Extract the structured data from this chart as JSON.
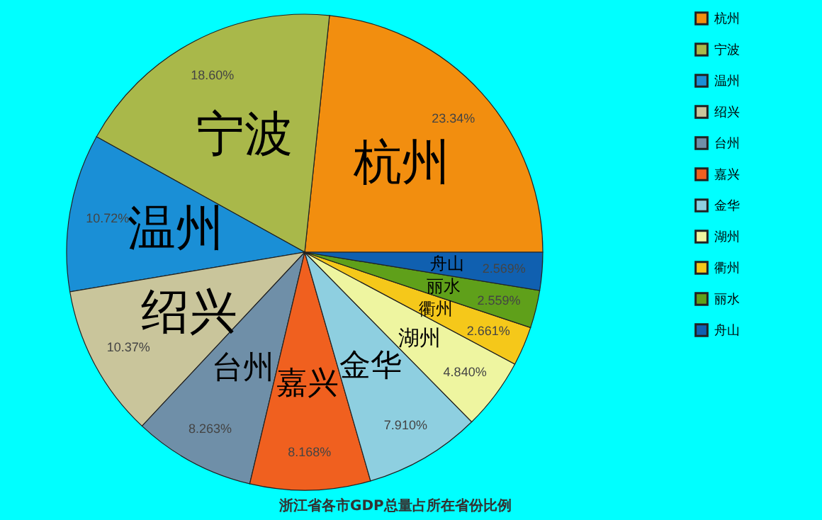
{
  "chart_data": {
    "type": "pie",
    "title": "浙江省各市GDP总量占所在省份比例",
    "categories": [
      "杭州",
      "宁波",
      "温州",
      "绍兴",
      "台州",
      "嘉兴",
      "金华",
      "湖州",
      "衢州",
      "丽水",
      "舟山"
    ],
    "values": [
      23.34,
      18.6,
      10.72,
      10.37,
      8.263,
      8.168,
      7.91,
      4.84,
      2.661,
      2.559,
      2.569
    ],
    "value_labels": [
      "23.34%",
      "18.60%",
      "10.72%",
      "10.37%",
      "8.263%",
      "8.168%",
      "7.910%",
      "4.840%",
      "2.661%",
      "2.559%",
      "2.569%"
    ],
    "colors": [
      "#f28e0f",
      "#a9b84a",
      "#1a8fd6",
      "#c9c59b",
      "#6f8fa8",
      "#f0601f",
      "#8ecfe0",
      "#eef5a0",
      "#f5c81a",
      "#5fa01a",
      "#1060b0"
    ],
    "legend": "top right"
  }
}
